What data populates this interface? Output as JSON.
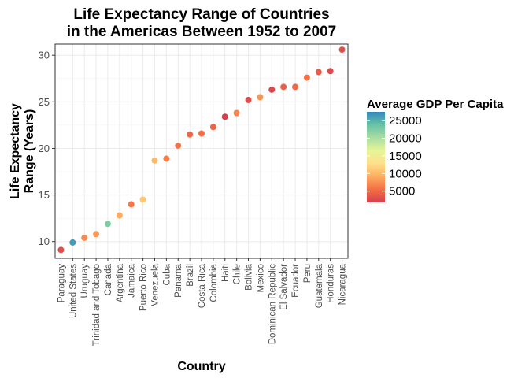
{
  "chart_data": {
    "type": "scatter",
    "title_lines": [
      "Life Expectancy Range of Countries",
      "in the Americas Between 1952 to 2007"
    ],
    "xlabel": "Country",
    "ylabel_lines": [
      "Life Expectancy",
      "Range (Years)"
    ],
    "ylim": [
      8.2,
      31.2
    ],
    "yticks": [
      10,
      15,
      20,
      25,
      30
    ],
    "grid": true,
    "legend": {
      "title": "Average GDP Per Capita",
      "position": "right",
      "range": [
        1800,
        27500
      ],
      "ticks": [
        5000,
        10000,
        15000,
        20000,
        25000
      ],
      "colors": [
        "#d53e4f",
        "#f46d43",
        "#fdae61",
        "#fee08b",
        "#e6f598",
        "#abdda4",
        "#66c2a5",
        "#3288bd"
      ]
    },
    "categories": [
      "Paraguay",
      "United States",
      "Uruguay",
      "Trinidad and Tobago",
      "Canada",
      "Argentina",
      "Jamaica",
      "Puerto Rico",
      "Venezuela",
      "Cuba",
      "Panama",
      "Brazil",
      "Costa Rica",
      "Colombia",
      "Haiti",
      "Chile",
      "Bolivia",
      "Mexico",
      "Dominican Republic",
      "El Salvador",
      "Ecuador",
      "Peru",
      "Guatemala",
      "Honduras",
      "Nicaragua"
    ],
    "values": [
      9.1,
      9.9,
      10.4,
      10.8,
      11.9,
      12.8,
      14.0,
      14.5,
      18.7,
      18.9,
      20.3,
      21.5,
      21.6,
      22.3,
      23.4,
      23.8,
      25.2,
      25.5,
      26.3,
      26.6,
      26.6,
      27.6,
      28.2,
      28.3,
      30.6
    ],
    "gdp": [
      3000,
      26300,
      7100,
      8000,
      22500,
      9000,
      6000,
      11000,
      10000,
      6300,
      5800,
      5000,
      5400,
      4700,
      1800,
      6700,
      2900,
      7700,
      2500,
      4400,
      5000,
      5700,
      4000,
      2800,
      3400
    ]
  }
}
